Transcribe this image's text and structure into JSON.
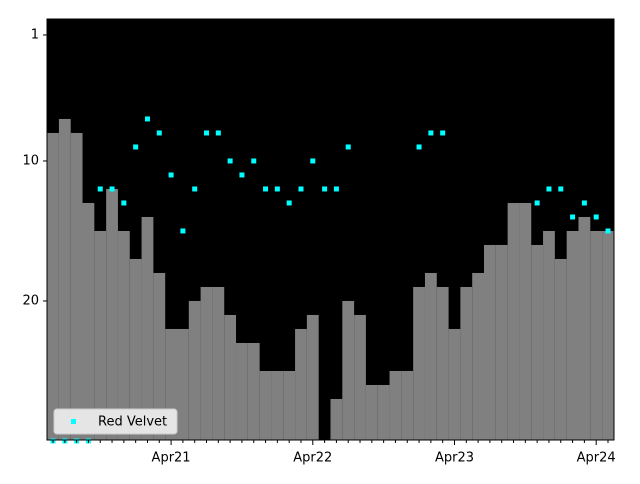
{
  "chart_data": {
    "type": "rank",
    "categories": [
      null,
      null,
      null,
      null,
      null,
      null,
      null,
      null,
      null,
      null,
      "Apr21",
      null,
      null,
      null,
      null,
      null,
      null,
      null,
      null,
      null,
      null,
      null,
      "Apr22",
      null,
      null,
      null,
      null,
      null,
      null,
      null,
      null,
      null,
      null,
      null,
      "Apr23",
      null,
      null,
      null,
      null,
      null,
      null,
      null,
      null,
      null,
      null,
      null,
      "Apr24",
      null
    ],
    "series": [
      {
        "color": "#808080",
        "style": "step-area",
        "values": [
          8,
          7,
          8,
          13,
          15,
          12,
          15,
          17,
          14,
          18,
          22,
          22,
          20,
          19,
          19,
          21,
          23,
          23,
          25,
          25,
          25,
          22,
          21,
          null,
          27,
          20,
          21,
          26,
          26,
          25,
          25,
          19,
          18,
          19,
          22,
          19,
          18,
          16,
          16,
          13,
          13,
          16,
          15,
          17,
          15,
          14,
          15,
          15
        ]
      },
      {
        "name": "Red Velvet",
        "color": "#00ffff",
        "style": "marker",
        "values": [
          30,
          30,
          30,
          30,
          12,
          12,
          13,
          9,
          7,
          8,
          11,
          15,
          12,
          8,
          8,
          10,
          11,
          10,
          12,
          12,
          13,
          12,
          10,
          12,
          12,
          9,
          null,
          null,
          null,
          null,
          null,
          9,
          8,
          8,
          null,
          null,
          null,
          null,
          null,
          null,
          null,
          13,
          12,
          12,
          14,
          13,
          14,
          15
        ]
      }
    ],
    "ylim": [
      29.93,
      -0.14
    ],
    "yticks": [
      1,
      10,
      20
    ],
    "background": "#000000",
    "legend": "lower left"
  }
}
